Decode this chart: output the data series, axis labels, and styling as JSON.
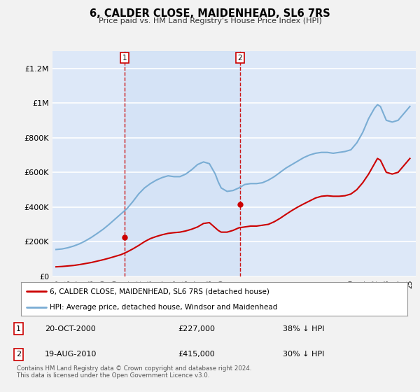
{
  "title": "6, CALDER CLOSE, MAIDENHEAD, SL6 7RS",
  "subtitle": "Price paid vs. HM Land Registry's House Price Index (HPI)",
  "background_color": "#f2f2f2",
  "plot_bg_color": "#dde8f8",
  "sale1_label": "20-OCT-2000",
  "sale1_price": 227000,
  "sale1_pct": "38% ↓ HPI",
  "sale1_x": 2000.8,
  "sale2_label": "19-AUG-2010",
  "sale2_price": 415000,
  "sale2_pct": "30% ↓ HPI",
  "sale2_x": 2010.6,
  "red_line_color": "#cc0000",
  "blue_line_color": "#7aadd4",
  "vline_color": "#cc0000",
  "grid_color": "#ffffff",
  "legend_label_red": "6, CALDER CLOSE, MAIDENHEAD, SL6 7RS (detached house)",
  "legend_label_blue": "HPI: Average price, detached house, Windsor and Maidenhead",
  "footer": "Contains HM Land Registry data © Crown copyright and database right 2024.\nThis data is licensed under the Open Government Licence v3.0.",
  "ylim": [
    0,
    1300000
  ],
  "yticks": [
    0,
    200000,
    400000,
    600000,
    800000,
    1000000,
    1200000
  ],
  "ytick_labels": [
    "£0",
    "£200K",
    "£400K",
    "£600K",
    "£800K",
    "£1M",
    "£1.2M"
  ],
  "hpi_x": [
    1995,
    1995.5,
    1996,
    1996.5,
    1997,
    1997.5,
    1998,
    1998.5,
    1999,
    1999.5,
    2000,
    2000.5,
    2001,
    2001.5,
    2002,
    2002.5,
    2003,
    2003.5,
    2004,
    2004.5,
    2005,
    2005.5,
    2006,
    2006.5,
    2007,
    2007.5,
    2008,
    2008.25,
    2008.5,
    2008.75,
    2009,
    2009.5,
    2010,
    2010.5,
    2011,
    2011.5,
    2012,
    2012.5,
    2013,
    2013.5,
    2014,
    2014.5,
    2015,
    2015.5,
    2016,
    2016.5,
    2017,
    2017.5,
    2018,
    2018.5,
    2019,
    2019.5,
    2020,
    2020.5,
    2021,
    2021.5,
    2022,
    2022.25,
    2022.5,
    2022.75,
    2023,
    2023.5,
    2024,
    2024.5,
    2025
  ],
  "hpi_y": [
    155000,
    158000,
    165000,
    175000,
    188000,
    205000,
    225000,
    248000,
    272000,
    300000,
    330000,
    360000,
    390000,
    430000,
    475000,
    510000,
    535000,
    555000,
    570000,
    580000,
    575000,
    575000,
    590000,
    615000,
    645000,
    660000,
    650000,
    620000,
    590000,
    545000,
    510000,
    490000,
    495000,
    510000,
    530000,
    535000,
    535000,
    540000,
    555000,
    575000,
    600000,
    625000,
    645000,
    665000,
    685000,
    700000,
    710000,
    715000,
    715000,
    710000,
    715000,
    720000,
    730000,
    770000,
    830000,
    910000,
    970000,
    990000,
    980000,
    940000,
    900000,
    890000,
    900000,
    940000,
    980000
  ],
  "red_x": [
    1995,
    1995.5,
    1996,
    1996.5,
    1997,
    1997.5,
    1998,
    1998.5,
    1999,
    1999.5,
    2000,
    2000.5,
    2001,
    2001.5,
    2002,
    2002.5,
    2003,
    2003.5,
    2004,
    2004.5,
    2005,
    2005.5,
    2006,
    2006.5,
    2007,
    2007.5,
    2008,
    2008.25,
    2008.5,
    2008.75,
    2009,
    2009.5,
    2010,
    2010.5,
    2011,
    2011.5,
    2012,
    2012.5,
    2013,
    2013.5,
    2014,
    2014.5,
    2015,
    2015.5,
    2016,
    2016.5,
    2017,
    2017.5,
    2018,
    2018.5,
    2019,
    2019.5,
    2020,
    2020.5,
    2021,
    2021.5,
    2022,
    2022.25,
    2022.5,
    2022.75,
    2023,
    2023.5,
    2024,
    2024.5,
    2025
  ],
  "red_y": [
    55000,
    57000,
    60000,
    63000,
    68000,
    74000,
    80000,
    88000,
    96000,
    105000,
    115000,
    125000,
    140000,
    158000,
    178000,
    200000,
    218000,
    230000,
    240000,
    248000,
    252000,
    255000,
    262000,
    272000,
    285000,
    305000,
    310000,
    295000,
    280000,
    265000,
    255000,
    255000,
    265000,
    280000,
    285000,
    290000,
    290000,
    295000,
    300000,
    315000,
    335000,
    358000,
    380000,
    400000,
    418000,
    435000,
    452000,
    462000,
    465000,
    462000,
    462000,
    465000,
    475000,
    500000,
    540000,
    590000,
    650000,
    680000,
    670000,
    635000,
    600000,
    590000,
    600000,
    640000,
    680000
  ]
}
